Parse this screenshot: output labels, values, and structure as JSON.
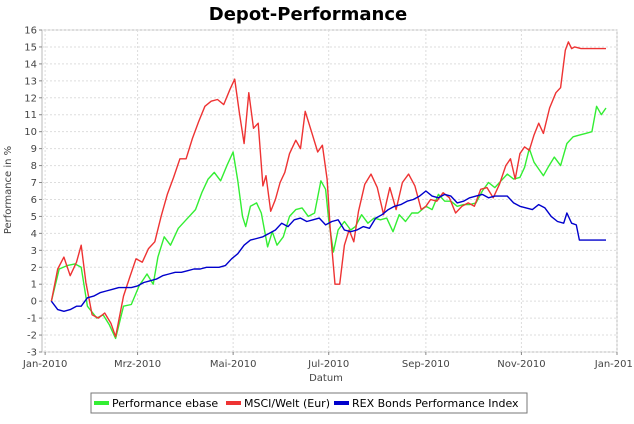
{
  "chart_data": {
    "type": "line",
    "title": "Depot-Performance",
    "xlabel": "Datum",
    "ylabel": "Performance in %",
    "x_ticks": [
      {
        "label": "Jan-2010",
        "day": 0
      },
      {
        "label": "Mrz-2010",
        "day": 59
      },
      {
        "label": "Mai-2010",
        "day": 120
      },
      {
        "label": "Jul-2010",
        "day": 181
      },
      {
        "label": "Sep-2010",
        "day": 243
      },
      {
        "label": "Nov-2010",
        "day": 304
      },
      {
        "label": "Jan-2011",
        "day": 365
      }
    ],
    "ylim": [
      -3,
      16
    ],
    "y_ticks": [
      -3,
      -2,
      -1,
      0,
      1,
      2,
      3,
      4,
      5,
      6,
      7,
      8,
      9,
      10,
      11,
      12,
      13,
      14,
      15,
      16
    ],
    "grid": true,
    "legend_position": "bottom",
    "series": [
      {
        "name": "Performance ebase",
        "color": "#33ee33",
        "points": [
          [
            4,
            0
          ],
          [
            9,
            1.9
          ],
          [
            14,
            2.1
          ],
          [
            19,
            2.2
          ],
          [
            23,
            2.0
          ],
          [
            27,
            -0.3
          ],
          [
            33,
            -1.0
          ],
          [
            37,
            -0.8
          ],
          [
            41,
            -1.4
          ],
          [
            45,
            -2.2
          ],
          [
            50,
            -0.3
          ],
          [
            55,
            -0.2
          ],
          [
            60,
            0.9
          ],
          [
            65,
            1.6
          ],
          [
            69,
            1.0
          ],
          [
            72,
            2.6
          ],
          [
            76,
            3.8
          ],
          [
            80,
            3.3
          ],
          [
            85,
            4.3
          ],
          [
            90,
            4.8
          ],
          [
            96,
            5.4
          ],
          [
            100,
            6.4
          ],
          [
            104,
            7.2
          ],
          [
            108,
            7.6
          ],
          [
            112,
            7.1
          ],
          [
            116,
            8.0
          ],
          [
            120,
            8.8
          ],
          [
            123,
            7.1
          ],
          [
            126,
            5.0
          ],
          [
            128,
            4.4
          ],
          [
            131,
            5.6
          ],
          [
            135,
            5.8
          ],
          [
            138,
            5.2
          ],
          [
            142,
            3.2
          ],
          [
            145,
            4.1
          ],
          [
            148,
            3.3
          ],
          [
            152,
            3.8
          ],
          [
            156,
            5.0
          ],
          [
            160,
            5.4
          ],
          [
            164,
            5.5
          ],
          [
            168,
            5.0
          ],
          [
            172,
            5.2
          ],
          [
            176,
            7.1
          ],
          [
            179,
            6.6
          ],
          [
            181,
            4.8
          ],
          [
            184,
            2.9
          ],
          [
            187,
            4.2
          ],
          [
            191,
            4.7
          ],
          [
            195,
            4.2
          ],
          [
            198,
            4.4
          ],
          [
            202,
            5.1
          ],
          [
            206,
            4.6
          ],
          [
            210,
            4.9
          ],
          [
            214,
            4.8
          ],
          [
            218,
            4.9
          ],
          [
            222,
            4.1
          ],
          [
            226,
            5.1
          ],
          [
            230,
            4.7
          ],
          [
            234,
            5.2
          ],
          [
            238,
            5.2
          ],
          [
            243,
            5.6
          ],
          [
            247,
            5.4
          ],
          [
            251,
            6.3
          ],
          [
            255,
            5.9
          ],
          [
            259,
            5.9
          ],
          [
            263,
            5.6
          ],
          [
            267,
            5.7
          ],
          [
            271,
            5.7
          ],
          [
            275,
            5.8
          ],
          [
            279,
            6.5
          ],
          [
            283,
            7.0
          ],
          [
            287,
            6.7
          ],
          [
            291,
            7.1
          ],
          [
            295,
            7.5
          ],
          [
            299,
            7.2
          ],
          [
            303,
            7.3
          ],
          [
            306,
            7.9
          ],
          [
            309,
            9.0
          ],
          [
            312,
            8.2
          ],
          [
            315,
            7.8
          ],
          [
            318,
            7.4
          ],
          [
            321,
            7.9
          ],
          [
            325,
            8.5
          ],
          [
            329,
            8.0
          ],
          [
            333,
            9.3
          ],
          [
            337,
            9.7
          ],
          [
            341,
            9.8
          ],
          [
            345,
            9.9
          ],
          [
            349,
            10.0
          ],
          [
            352,
            11.5
          ],
          [
            355,
            11.0
          ],
          [
            358,
            11.4
          ]
        ]
      },
      {
        "name": "MSCI/Welt (Eur)",
        "color": "#ee3333",
        "points": [
          [
            4,
            0
          ],
          [
            8,
            1.9
          ],
          [
            12,
            2.6
          ],
          [
            16,
            1.5
          ],
          [
            20,
            2.3
          ],
          [
            23,
            3.3
          ],
          [
            26,
            1.1
          ],
          [
            30,
            -0.8
          ],
          [
            34,
            -1.0
          ],
          [
            38,
            -0.7
          ],
          [
            42,
            -1.3
          ],
          [
            45,
            -2.1
          ],
          [
            50,
            0.3
          ],
          [
            54,
            1.4
          ],
          [
            58,
            2.5
          ],
          [
            62,
            2.3
          ],
          [
            66,
            3.1
          ],
          [
            70,
            3.5
          ],
          [
            74,
            5.0
          ],
          [
            78,
            6.3
          ],
          [
            82,
            7.3
          ],
          [
            86,
            8.4
          ],
          [
            90,
            8.4
          ],
          [
            94,
            9.6
          ],
          [
            98,
            10.6
          ],
          [
            102,
            11.5
          ],
          [
            106,
            11.8
          ],
          [
            110,
            11.9
          ],
          [
            114,
            11.6
          ],
          [
            118,
            12.5
          ],
          [
            121,
            13.1
          ],
          [
            124,
            11.1
          ],
          [
            127,
            9.3
          ],
          [
            130,
            12.3
          ],
          [
            133,
            10.2
          ],
          [
            136,
            10.5
          ],
          [
            139,
            6.8
          ],
          [
            141,
            7.4
          ],
          [
            144,
            5.3
          ],
          [
            147,
            6.0
          ],
          [
            150,
            7.0
          ],
          [
            153,
            7.6
          ],
          [
            156,
            8.7
          ],
          [
            160,
            9.5
          ],
          [
            163,
            9.0
          ],
          [
            166,
            11.2
          ],
          [
            170,
            10.0
          ],
          [
            174,
            8.8
          ],
          [
            177,
            9.2
          ],
          [
            180,
            7.2
          ],
          [
            182,
            4.2
          ],
          [
            185,
            1.0
          ],
          [
            188,
            1.0
          ],
          [
            191,
            3.3
          ],
          [
            194,
            4.2
          ],
          [
            197,
            3.5
          ],
          [
            200,
            5.3
          ],
          [
            204,
            6.9
          ],
          [
            208,
            7.5
          ],
          [
            212,
            6.7
          ],
          [
            216,
            5.1
          ],
          [
            220,
            6.7
          ],
          [
            224,
            5.4
          ],
          [
            228,
            7.0
          ],
          [
            232,
            7.5
          ],
          [
            236,
            6.8
          ],
          [
            240,
            5.4
          ],
          [
            243,
            5.6
          ],
          [
            246,
            6.0
          ],
          [
            250,
            5.9
          ],
          [
            254,
            6.4
          ],
          [
            258,
            6.1
          ],
          [
            262,
            5.2
          ],
          [
            266,
            5.6
          ],
          [
            270,
            5.8
          ],
          [
            274,
            5.6
          ],
          [
            278,
            6.6
          ],
          [
            282,
            6.7
          ],
          [
            286,
            6.1
          ],
          [
            290,
            6.9
          ],
          [
            294,
            8.0
          ],
          [
            297,
            8.4
          ],
          [
            300,
            7.2
          ],
          [
            303,
            8.7
          ],
          [
            306,
            9.1
          ],
          [
            309,
            8.9
          ],
          [
            312,
            9.8
          ],
          [
            315,
            10.5
          ],
          [
            318,
            9.9
          ],
          [
            322,
            11.4
          ],
          [
            326,
            12.3
          ],
          [
            329,
            12.6
          ],
          [
            332,
            14.8
          ],
          [
            334,
            15.3
          ],
          [
            336,
            14.9
          ],
          [
            338,
            15.0
          ],
          [
            342,
            14.9
          ],
          [
            358,
            14.9
          ]
        ]
      },
      {
        "name": "REX Bonds Performance Index",
        "color": "#0000cc",
        "points": [
          [
            4,
            0
          ],
          [
            8,
            -0.5
          ],
          [
            12,
            -0.6
          ],
          [
            16,
            -0.5
          ],
          [
            20,
            -0.3
          ],
          [
            23,
            -0.3
          ],
          [
            27,
            0.2
          ],
          [
            31,
            0.3
          ],
          [
            35,
            0.5
          ],
          [
            39,
            0.6
          ],
          [
            43,
            0.7
          ],
          [
            47,
            0.8
          ],
          [
            51,
            0.8
          ],
          [
            55,
            0.8
          ],
          [
            59,
            0.9
          ],
          [
            63,
            1.1
          ],
          [
            67,
            1.2
          ],
          [
            71,
            1.3
          ],
          [
            75,
            1.5
          ],
          [
            79,
            1.6
          ],
          [
            83,
            1.7
          ],
          [
            87,
            1.7
          ],
          [
            91,
            1.8
          ],
          [
            95,
            1.9
          ],
          [
            99,
            1.9
          ],
          [
            103,
            2.0
          ],
          [
            107,
            2.0
          ],
          [
            111,
            2.0
          ],
          [
            115,
            2.1
          ],
          [
            119,
            2.5
          ],
          [
            123,
            2.8
          ],
          [
            127,
            3.3
          ],
          [
            131,
            3.6
          ],
          [
            135,
            3.7
          ],
          [
            139,
            3.8
          ],
          [
            143,
            4.0
          ],
          [
            147,
            4.2
          ],
          [
            151,
            4.6
          ],
          [
            155,
            4.4
          ],
          [
            159,
            4.8
          ],
          [
            163,
            4.9
          ],
          [
            167,
            4.7
          ],
          [
            171,
            4.8
          ],
          [
            175,
            4.9
          ],
          [
            179,
            4.5
          ],
          [
            183,
            4.7
          ],
          [
            187,
            4.8
          ],
          [
            191,
            4.2
          ],
          [
            195,
            4.1
          ],
          [
            199,
            4.2
          ],
          [
            203,
            4.4
          ],
          [
            207,
            4.3
          ],
          [
            211,
            4.9
          ],
          [
            215,
            5.1
          ],
          [
            219,
            5.4
          ],
          [
            223,
            5.6
          ],
          [
            227,
            5.7
          ],
          [
            231,
            5.9
          ],
          [
            235,
            6.0
          ],
          [
            239,
            6.2
          ],
          [
            243,
            6.5
          ],
          [
            247,
            6.2
          ],
          [
            251,
            6.1
          ],
          [
            255,
            6.3
          ],
          [
            259,
            6.2
          ],
          [
            263,
            5.8
          ],
          [
            267,
            5.9
          ],
          [
            271,
            6.1
          ],
          [
            275,
            6.2
          ],
          [
            279,
            6.3
          ],
          [
            283,
            6.1
          ],
          [
            287,
            6.2
          ],
          [
            291,
            6.2
          ],
          [
            295,
            6.2
          ],
          [
            299,
            5.8
          ],
          [
            303,
            5.6
          ],
          [
            307,
            5.5
          ],
          [
            311,
            5.4
          ],
          [
            315,
            5.7
          ],
          [
            319,
            5.5
          ],
          [
            323,
            5.0
          ],
          [
            327,
            4.7
          ],
          [
            331,
            4.6
          ],
          [
            333,
            5.2
          ],
          [
            336,
            4.6
          ],
          [
            339,
            4.5
          ],
          [
            341,
            3.6
          ],
          [
            358,
            3.6
          ]
        ]
      }
    ]
  }
}
